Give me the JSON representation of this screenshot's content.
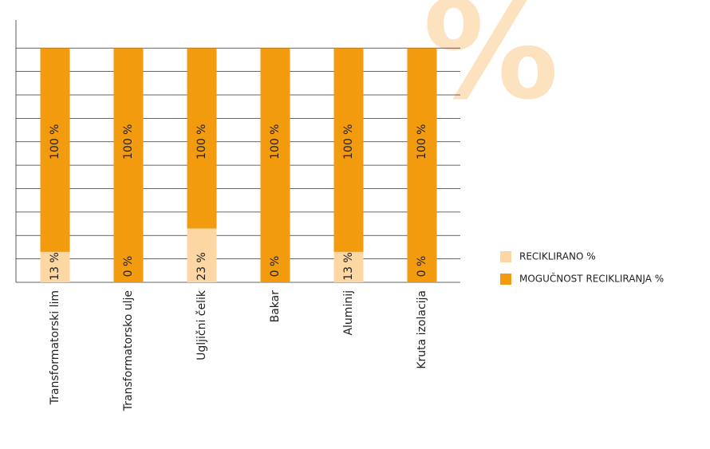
{
  "chart_data": {
    "type": "bar",
    "overlap": true,
    "watermark": "%",
    "categories": [
      "Transformatorski lim",
      "Transformatorsko ulje",
      "Ugljični čelik",
      "Bakar",
      "Aluminij",
      "Kruta izolacija"
    ],
    "series": [
      {
        "name": "MOGUČNOST RECIKLIRANJA %",
        "color": "#f29b0f",
        "values": [
          100,
          100,
          100,
          100,
          100,
          100
        ],
        "value_labels": [
          "100 %",
          "100 %",
          "100 %",
          "100 %",
          "100 %",
          "100 %"
        ]
      },
      {
        "name": "RECIKLIRANO %",
        "color": "#fcd6a3",
        "values": [
          13,
          0,
          23,
          0,
          13,
          0
        ],
        "value_labels": [
          "13 %",
          "0 %",
          "23 %",
          "0 %",
          "13 %",
          "0 %"
        ]
      }
    ],
    "ylim": [
      0,
      112
    ],
    "yticks": [
      0,
      10,
      20,
      30,
      40,
      50,
      60,
      70,
      80,
      90,
      100
    ],
    "grid": true
  }
}
